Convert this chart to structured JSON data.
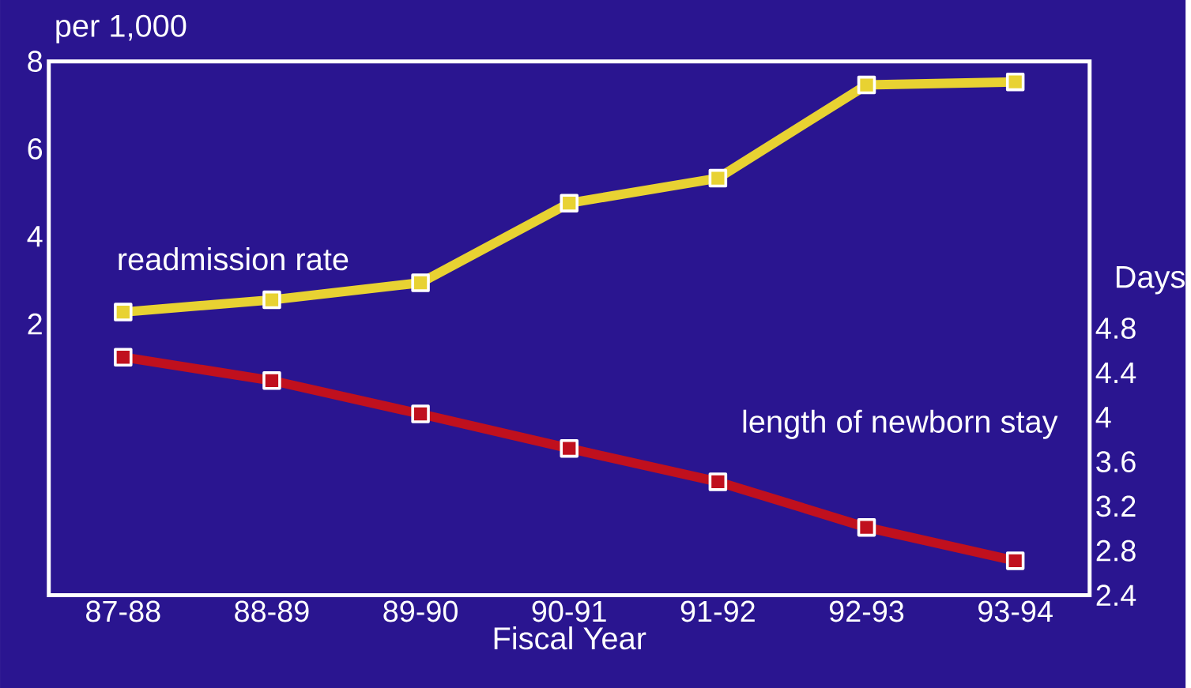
{
  "chart_data": {
    "type": "line",
    "xlabel": "Fiscal Year",
    "ylabel": "per 1,000",
    "y2label": "Days",
    "categories": [
      "87-88",
      "88-89",
      "89-90",
      "90-91",
      "91-92",
      "92-93",
      "93-94"
    ],
    "series": [
      {
        "name": "readmission rate",
        "color": "#e8d232",
        "values": [
          2.27,
          2.55,
          2.94,
          4.76,
          5.33,
          7.46,
          7.53
        ]
      },
      {
        "name": "length of newborn stay",
        "color": "#c0101e",
        "axis": "y2",
        "values": [
          4.54,
          4.33,
          4.03,
          3.72,
          3.42,
          3.01,
          2.71
        ]
      }
    ],
    "ylim": [
      -4.2,
      8
    ],
    "yticks": [
      2,
      4,
      6,
      8
    ],
    "y2lim": [
      2.4,
      7.2
    ],
    "y2ticks": [
      2.4,
      2.8,
      3.2,
      3.6,
      4,
      4.4,
      4.8
    ],
    "marker": "square",
    "line_style": "solid"
  }
}
